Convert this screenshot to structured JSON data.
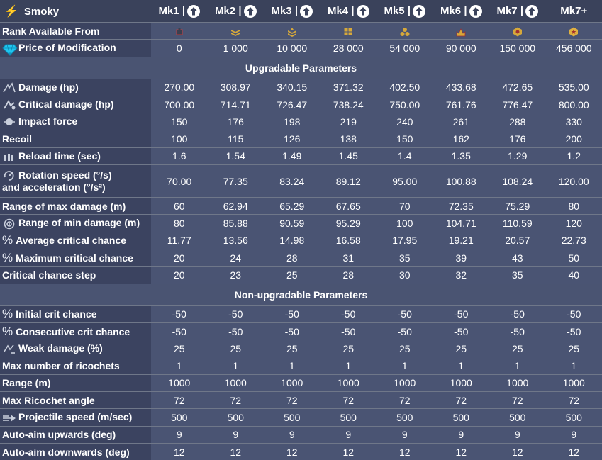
{
  "header": {
    "name": "Smoky",
    "name_icon": "lightning-icon",
    "columns": [
      "Mk1 |",
      "Mk2 |",
      "Mk3 |",
      "Mk4 |",
      "Mk5 |",
      "Mk6 |",
      "Mk7 |",
      "Mk7+"
    ],
    "upgrade_icon": "upgrade-arrow-icon"
  },
  "rank_row": {
    "label": "Rank Available From",
    "rank_icons": [
      "rank-1-icon",
      "rank-2-icon",
      "rank-3-icon",
      "rank-4-icon",
      "rank-5-icon",
      "rank-6-icon",
      "rank-7-icon",
      "rank-8-icon"
    ]
  },
  "price_row": {
    "label": "Price of Modification",
    "icon": "crystal-icon",
    "values": [
      "0",
      "1 000",
      "10 000",
      "28 000",
      "54 000",
      "90 000",
      "150 000",
      "456 000"
    ]
  },
  "sections": {
    "upgradable": "Upgradable Parameters",
    "non_upgradable": "Non-upgradable Parameters"
  },
  "upgradable_rows": [
    {
      "label": "Damage (hp)",
      "icon": "damage-icon",
      "values": [
        "270.00",
        "308.97",
        "340.15",
        "371.32",
        "402.50",
        "433.68",
        "472.65",
        "535.00"
      ]
    },
    {
      "label": "Critical damage (hp)",
      "icon": "critical-damage-icon",
      "values": [
        "700.00",
        "714.71",
        "726.47",
        "738.24",
        "750.00",
        "761.76",
        "776.47",
        "800.00"
      ]
    },
    {
      "label": "Impact force",
      "icon": "impact-force-icon",
      "values": [
        "150",
        "176",
        "198",
        "219",
        "240",
        "261",
        "288",
        "330"
      ]
    },
    {
      "label": "Recoil",
      "icon": "",
      "values": [
        "100",
        "115",
        "126",
        "138",
        "150",
        "162",
        "176",
        "200"
      ]
    },
    {
      "label": "Reload time (sec)",
      "icon": "reload-icon",
      "values": [
        "1.6",
        "1.54",
        "1.49",
        "1.45",
        "1.4",
        "1.35",
        "1.29",
        "1.2"
      ]
    },
    {
      "label": "Rotation speed (°/s)",
      "label2": "and acceleration (°/s²)",
      "icon": "rotation-icon",
      "values": [
        "70.00",
        "77.35",
        "83.24",
        "89.12",
        "95.00",
        "100.88",
        "108.24",
        "120.00"
      ]
    },
    {
      "label": "Range of max damage (m)",
      "icon": "",
      "values": [
        "60",
        "62.94",
        "65.29",
        "67.65",
        "70",
        "72.35",
        "75.29",
        "80"
      ]
    },
    {
      "label": "Range of min damage (m)",
      "icon": "range-target-icon",
      "values": [
        "80",
        "85.88",
        "90.59",
        "95.29",
        "100",
        "104.71",
        "110.59",
        "120"
      ]
    },
    {
      "label": "Average critical chance",
      "icon": "percent-icon",
      "values": [
        "11.77",
        "13.56",
        "14.98",
        "16.58",
        "17.95",
        "19.21",
        "20.57",
        "22.73"
      ]
    },
    {
      "label": "Maximum critical chance",
      "icon": "percent-icon",
      "values": [
        "20",
        "24",
        "28",
        "31",
        "35",
        "39",
        "43",
        "50"
      ]
    },
    {
      "label": "Critical chance step",
      "icon": "",
      "values": [
        "20",
        "23",
        "25",
        "28",
        "30",
        "32",
        "35",
        "40"
      ]
    }
  ],
  "non_upgradable_rows": [
    {
      "label": "Initial crit chance",
      "icon": "percent-icon",
      "values": [
        "-50",
        "-50",
        "-50",
        "-50",
        "-50",
        "-50",
        "-50",
        "-50"
      ]
    },
    {
      "label": "Consecutive crit chance",
      "icon": "percent-icon",
      "values": [
        "-50",
        "-50",
        "-50",
        "-50",
        "-50",
        "-50",
        "-50",
        "-50"
      ]
    },
    {
      "label": "Weak damage (%)",
      "icon": "weak-damage-icon",
      "values": [
        "25",
        "25",
        "25",
        "25",
        "25",
        "25",
        "25",
        "25"
      ]
    },
    {
      "label": "Max number of ricochets",
      "icon": "",
      "values": [
        "1",
        "1",
        "1",
        "1",
        "1",
        "1",
        "1",
        "1"
      ]
    },
    {
      "label": "Range (m)",
      "icon": "",
      "values": [
        "1000",
        "1000",
        "1000",
        "1000",
        "1000",
        "1000",
        "1000",
        "1000"
      ]
    },
    {
      "label": "Max Ricochet angle",
      "icon": "",
      "values": [
        "72",
        "72",
        "72",
        "72",
        "72",
        "72",
        "72",
        "72"
      ]
    },
    {
      "label": "Projectile speed (m/sec)",
      "icon": "projectile-speed-icon",
      "values": [
        "500",
        "500",
        "500",
        "500",
        "500",
        "500",
        "500",
        "500"
      ]
    },
    {
      "label": "Auto-aim upwards (deg)",
      "icon": "",
      "values": [
        "9",
        "9",
        "9",
        "9",
        "9",
        "9",
        "9",
        "9"
      ]
    },
    {
      "label": "Auto-aim downwards (deg)",
      "icon": "",
      "values": [
        "12",
        "12",
        "12",
        "12",
        "12",
        "12",
        "12",
        "12"
      ]
    }
  ],
  "colors": {
    "header_bg": "#3a425b",
    "param_bg": "#3b4360",
    "value_bg": "#4a5473",
    "accent_gold": "#ffd21a",
    "crystal": "#1fc6f0"
  }
}
